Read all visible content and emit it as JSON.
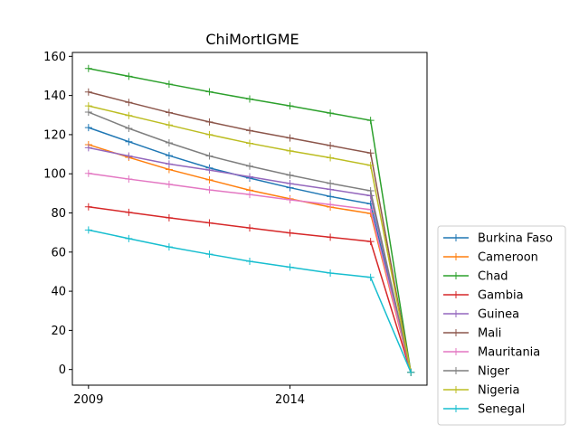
{
  "chart_data": {
    "type": "line",
    "title": "ChiMortIGME",
    "xlabel": "",
    "ylabel": "",
    "x": [
      2009,
      2010,
      2011,
      2012,
      2013,
      2014,
      2015,
      2016,
      2017
    ],
    "x_tick_labels": [
      "2009",
      "2014"
    ],
    "x_ticks": [
      2009,
      2014
    ],
    "xlim": [
      2008.6,
      2017.4
    ],
    "ylim": [
      -8,
      162
    ],
    "y_ticks": [
      0,
      20,
      40,
      60,
      80,
      100,
      120,
      140,
      160
    ],
    "y_tick_labels": [
      "0",
      "20",
      "40",
      "60",
      "80",
      "100",
      "120",
      "140",
      "160"
    ],
    "grid": false,
    "legend_position": "outside-right-bottom",
    "series": [
      {
        "name": "Burkina Faso",
        "color": "#1f77b4",
        "values": [
          123.6,
          116.4,
          109.3,
          103.0,
          97.8,
          92.9,
          88.4,
          84.6,
          -1.5
        ]
      },
      {
        "name": "Cameroon",
        "color": "#ff7f0e",
        "values": [
          114.9,
          108.4,
          102.2,
          96.9,
          91.6,
          87.2,
          83.0,
          79.7,
          -1.5
        ]
      },
      {
        "name": "Chad",
        "color": "#2ca02c",
        "values": [
          153.8,
          149.8,
          145.8,
          141.9,
          138.2,
          134.7,
          131.0,
          127.3,
          -1.5
        ]
      },
      {
        "name": "Gambia",
        "color": "#d62728",
        "values": [
          83.1,
          80.3,
          77.5,
          74.9,
          72.3,
          69.8,
          67.6,
          65.4,
          -1.5
        ]
      },
      {
        "name": "Guinea",
        "color": "#9467bd",
        "values": [
          113.3,
          109.1,
          105.0,
          101.9,
          98.5,
          95.0,
          92.0,
          88.8,
          -1.5
        ]
      },
      {
        "name": "Mali",
        "color": "#8c564b",
        "values": [
          141.8,
          136.5,
          131.3,
          126.5,
          122.1,
          118.3,
          114.4,
          110.6,
          -1.5
        ]
      },
      {
        "name": "Mauritania",
        "color": "#e377c2",
        "values": [
          100.2,
          97.3,
          94.6,
          91.8,
          89.4,
          86.7,
          84.3,
          81.7,
          -1.5
        ]
      },
      {
        "name": "Niger",
        "color": "#7f7f7f",
        "values": [
          131.5,
          123.2,
          115.8,
          109.1,
          103.9,
          99.3,
          95.1,
          91.3,
          -1.5
        ]
      },
      {
        "name": "Nigeria",
        "color": "#bcbd22",
        "values": [
          134.7,
          129.8,
          124.9,
          120.0,
          115.6,
          111.7,
          108.2,
          104.3,
          -1.5
        ]
      },
      {
        "name": "Senegal",
        "color": "#17becf",
        "values": [
          71.3,
          66.9,
          62.6,
          58.9,
          55.3,
          52.3,
          49.3,
          47.1,
          -1.5
        ]
      }
    ]
  }
}
